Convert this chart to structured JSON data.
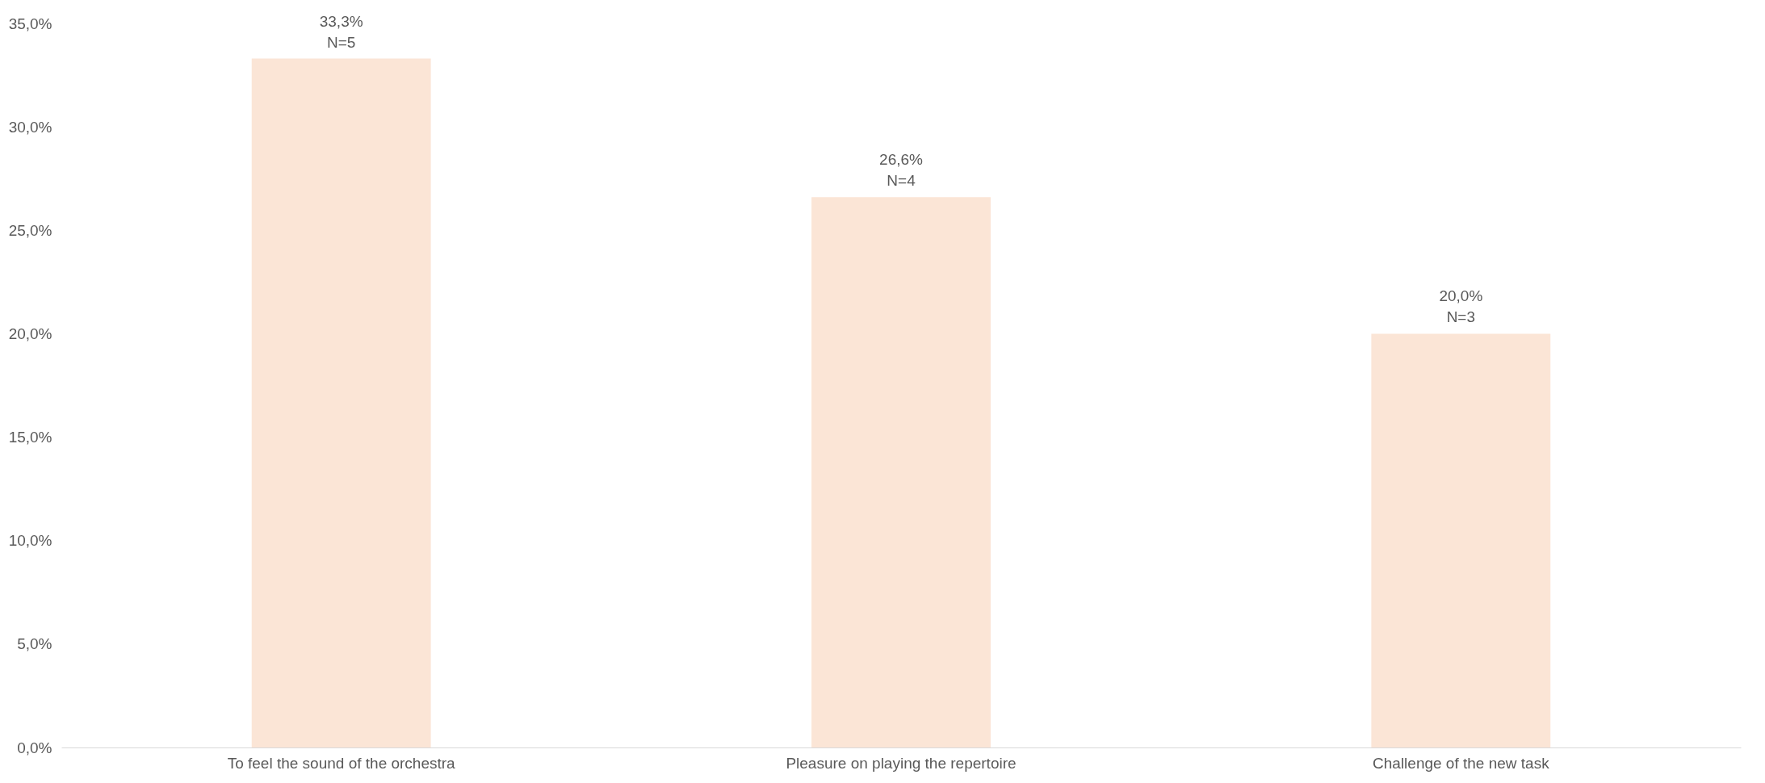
{
  "chart_data": {
    "type": "bar",
    "categories": [
      "To feel the sound of the orchestra",
      "Pleasure on playing the repertoire",
      "Challenge of the new task"
    ],
    "values": [
      33.3,
      26.6,
      20.0
    ],
    "color": "#fbe5d6",
    "value_labels": [
      "33,3%\nN=5",
      "26,6%\nN=4",
      "20,0%\nN=3"
    ],
    "ylim": [
      0,
      35
    ],
    "yticks": [
      {
        "value": 0,
        "label": "0,0%"
      },
      {
        "value": 5,
        "label": "5,0%"
      },
      {
        "value": 10,
        "label": "10,0%"
      },
      {
        "value": 15,
        "label": "15,0%"
      },
      {
        "value": 20,
        "label": "20,0%"
      },
      {
        "value": 25,
        "label": "25,0%"
      },
      {
        "value": 30,
        "label": "30,0%"
      },
      {
        "value": 35,
        "label": "35,0%"
      }
    ],
    "grid": false
  }
}
